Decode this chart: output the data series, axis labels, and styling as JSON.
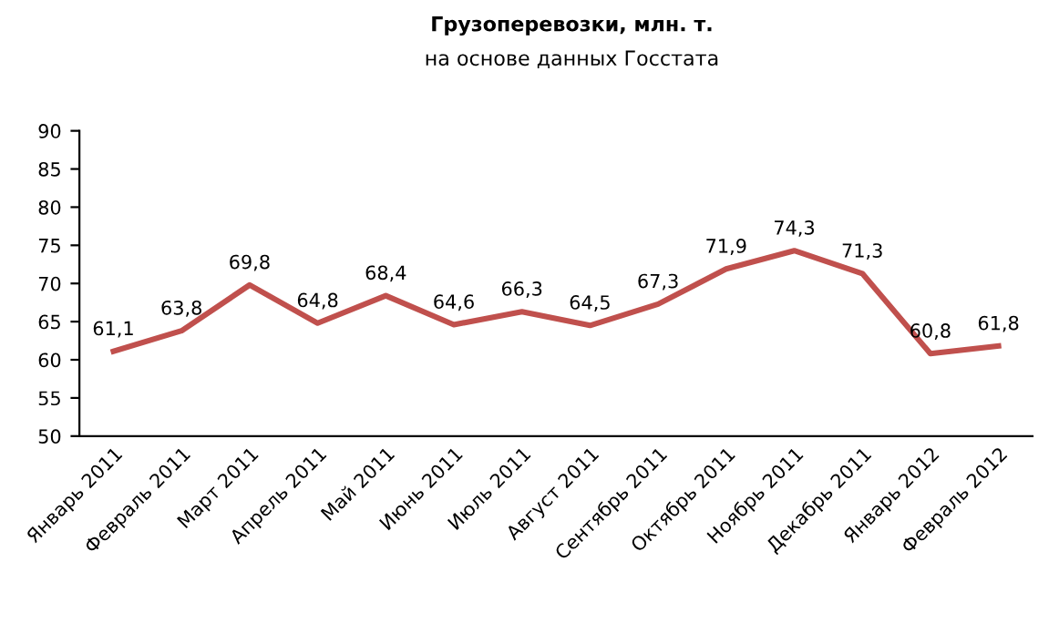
{
  "chart_data": {
    "type": "line",
    "title": "Грузоперевозки, млн. т.",
    "subtitle": "на основе данных Госстата",
    "categories": [
      "Январь 2011",
      "Февраль 2011",
      "Март 2011",
      "Апрель 2011",
      "Май 2011",
      "Июнь 2011",
      "Июль 2011",
      "Август 2011",
      "Сентябрь 2011",
      "Октябрь 2011",
      "Ноябрь 2011",
      "Декабрь 2011",
      "Январь 2012",
      "Февраль 2012"
    ],
    "series": [
      {
        "color": "#c0504d",
        "values": [
          61.1,
          63.8,
          69.8,
          64.8,
          68.4,
          64.6,
          66.3,
          64.5,
          67.3,
          71.9,
          74.3,
          71.3,
          60.8,
          61.8
        ],
        "value_labels": [
          "61,1",
          "63,8",
          "69,8",
          "64,8",
          "68,4",
          "64,6",
          "66,3",
          "64,5",
          "67,3",
          "71,9",
          "74,3",
          "71,3",
          "60,8",
          "61,8"
        ]
      }
    ],
    "ylim": [
      50,
      90
    ],
    "yticks": [
      50,
      55,
      60,
      65,
      70,
      75,
      80,
      85,
      90
    ],
    "grid": false,
    "legend": false,
    "marker": "none",
    "line_style": "solid"
  }
}
